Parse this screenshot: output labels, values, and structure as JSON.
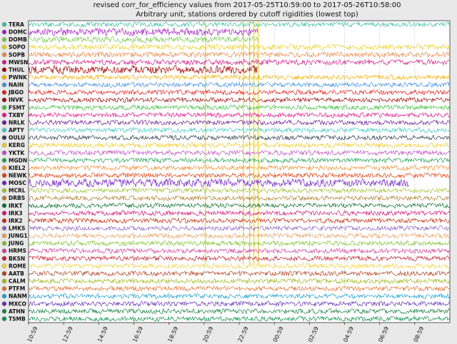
{
  "chart_data": {
    "type": "line",
    "title": "revised corr_for_efficiency values from 2017-05-25T10:59:00 to 2017-05-26T10:58:00",
    "subtitle": "Arbitrary unit, stations ordered by cutoff rigidities (lowest top)",
    "xlabel": "",
    "ylabel": "",
    "x_range": [
      "2017-05-25T10:59:00",
      "2017-05-26T10:58:00"
    ],
    "x_ticks": [
      "10:59",
      "12:59",
      "14:59",
      "16:59",
      "18:59",
      "20:59",
      "22:59",
      "00:59",
      "02:59",
      "04:59",
      "06:59",
      "08:59"
    ],
    "grid": true,
    "legend_position": "left",
    "series": [
      {
        "name": "TERA",
        "color": "#3cbea0",
        "end": 1.0,
        "amp": 0.35
      },
      {
        "name": "DOMC",
        "color": "#a020c0",
        "end": 0.545,
        "amp": 0.55
      },
      {
        "name": "DOMB",
        "color": "#78c850",
        "end": 0.545,
        "amp": 0.45
      },
      {
        "name": "SOPO",
        "color": "#e8d020",
        "end": 1.0,
        "amp": 0.4
      },
      {
        "name": "SOPB",
        "color": "#e88848",
        "end": 1.0,
        "amp": 0.4
      },
      {
        "name": "MWSN",
        "color": "#d0208c",
        "end": 1.0,
        "amp": 0.4
      },
      {
        "name": "THUL",
        "color": "#a00000",
        "end": 0.545,
        "amp": 0.6
      },
      {
        "name": "PWNK",
        "color": "#f0b000",
        "end": 1.0,
        "amp": 0.35
      },
      {
        "name": "NAIN",
        "color": "#4090e0",
        "end": 1.0,
        "amp": 0.35
      },
      {
        "name": "JBGO",
        "color": "#e02020",
        "end": 1.0,
        "amp": 0.35
      },
      {
        "name": "INVK",
        "color": "#a01010",
        "end": 1.0,
        "amp": 0.35
      },
      {
        "name": "FSMT",
        "color": "#40c040",
        "end": 1.0,
        "amp": 0.35
      },
      {
        "name": "TXBY",
        "color": "#e01890",
        "end": 1.0,
        "amp": 0.35
      },
      {
        "name": "NRLK",
        "color": "#702090",
        "end": 1.0,
        "amp": 0.35
      },
      {
        "name": "APTY",
        "color": "#40c8c8",
        "end": 1.0,
        "amp": 0.35
      },
      {
        "name": "OULU",
        "color": "#304050",
        "end": 1.0,
        "amp": 0.35
      },
      {
        "name": "KERG",
        "color": "#f0c820",
        "end": 1.0,
        "amp": 0.35
      },
      {
        "name": "YKTK",
        "color": "#c050c0",
        "end": 1.0,
        "amp": 0.35
      },
      {
        "name": "MGDN",
        "color": "#20a050",
        "end": 1.0,
        "amp": 0.35
      },
      {
        "name": "KIEL2",
        "color": "#f09030",
        "end": 1.0,
        "amp": 0.35
      },
      {
        "name": "NEWK",
        "color": "#e04010",
        "end": 1.0,
        "amp": 0.35
      },
      {
        "name": "MOSC",
        "color": "#7020c0",
        "end": 0.905,
        "amp": 0.6
      },
      {
        "name": "MCRL",
        "color": "#a0c030",
        "end": 1.0,
        "amp": 0.35
      },
      {
        "name": "DRBS",
        "color": "#b08030",
        "end": 1.0,
        "amp": 0.35
      },
      {
        "name": "IRKT",
        "color": "#107030",
        "end": 1.0,
        "amp": 0.35
      },
      {
        "name": "IRK3",
        "color": "#d01878",
        "end": 1.0,
        "amp": 0.35
      },
      {
        "name": "IRK2",
        "color": "#c03010",
        "end": 1.0,
        "amp": 0.35
      },
      {
        "name": "LMKS",
        "color": "#9060c0",
        "end": 1.0,
        "amp": 0.35
      },
      {
        "name": "JUNG1",
        "color": "#e8a060",
        "end": 1.0,
        "amp": 0.35
      },
      {
        "name": "JUNG",
        "color": "#80c030",
        "end": 1.0,
        "amp": 0.35
      },
      {
        "name": "HRMS",
        "color": "#d040a0",
        "end": 1.0,
        "amp": 0.35
      },
      {
        "name": "BKSN",
        "color": "#c02030",
        "end": 1.0,
        "amp": 0.35
      },
      {
        "name": "ROME",
        "color": "#f0d040",
        "end": 1.0,
        "amp": 0.35
      },
      {
        "name": "AATB",
        "color": "#b04020",
        "end": 1.0,
        "amp": 0.35
      },
      {
        "name": "CALM",
        "color": "#a0b820",
        "end": 1.0,
        "amp": 0.35
      },
      {
        "name": "PTFM",
        "color": "#e07030",
        "end": 1.0,
        "amp": 0.35
      },
      {
        "name": "NANM",
        "color": "#20a0d0",
        "end": 1.0,
        "amp": 0.35
      },
      {
        "name": "MXCO",
        "color": "#6030b0",
        "end": 1.0,
        "amp": 0.35
      },
      {
        "name": "ATHN",
        "color": "#20804a",
        "end": 1.0,
        "amp": 0.35
      },
      {
        "name": "TSMB",
        "color": "#109050",
        "end": 1.0,
        "amp": 0.35
      }
    ],
    "vertical_markers": [
      {
        "x": 0.42,
        "color": "#e8d020"
      },
      {
        "x": 0.51,
        "color": "#e8d020"
      },
      {
        "x": 0.525,
        "color": "#c8d020"
      },
      {
        "x": 0.535,
        "color": "#e8d020"
      },
      {
        "x": 0.545,
        "color": "#e8d020"
      }
    ]
  }
}
